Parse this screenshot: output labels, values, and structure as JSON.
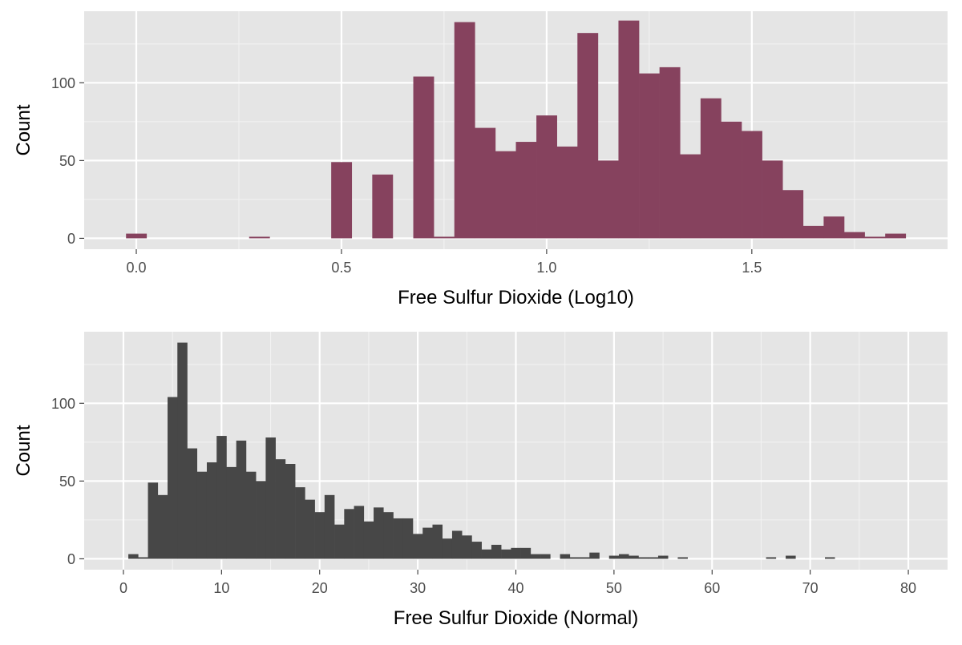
{
  "colors": {
    "panel_background": "#e5e5e5",
    "grid_major": "#ffffff",
    "grid_minor": "#f2f2f2",
    "tick_mark": "#333333",
    "tick_label": "#4d4d4d",
    "axis_title": "#000000",
    "top_fill": "#86425e",
    "bottom_fill": "#474747"
  },
  "chart_data": [
    {
      "type": "bar",
      "subtype": "histogram",
      "title": "",
      "xlabel": "Free Sulfur Dioxide (Log10)",
      "ylabel": "Count",
      "xlim": [
        -0.127,
        1.977
      ],
      "ylim": [
        -7,
        146
      ],
      "x_ticks": [
        {
          "value": 0.0,
          "label": "0.0"
        },
        {
          "value": 0.5,
          "label": "0.5"
        },
        {
          "value": 1.0,
          "label": "1.0"
        },
        {
          "value": 1.5,
          "label": "1.5"
        }
      ],
      "x_minor_ticks": [
        0.25,
        0.75,
        1.25,
        1.75
      ],
      "y_ticks": [
        {
          "value": 0,
          "label": "0"
        },
        {
          "value": 50,
          "label": "50"
        },
        {
          "value": 100,
          "label": "100"
        }
      ],
      "y_minor_ticks": [
        25,
        75,
        125
      ],
      "bin_width": 0.05,
      "bin_start": -0.025,
      "counts": [
        3,
        0,
        0,
        0,
        0,
        0,
        1,
        0,
        0,
        0,
        49,
        0,
        41,
        0,
        104,
        1,
        139,
        71,
        56,
        62,
        79,
        59,
        132,
        50,
        140,
        106,
        110,
        54,
        90,
        75,
        69,
        50,
        31,
        8,
        14,
        4,
        1,
        3
      ],
      "fill": "#86425e",
      "grid": true
    },
    {
      "type": "bar",
      "subtype": "histogram",
      "title": "",
      "xlabel": "Free Sulfur Dioxide (Normal)",
      "ylabel": "Count",
      "xlim": [
        -4,
        84
      ],
      "ylim": [
        -7,
        146
      ],
      "x_ticks": [
        {
          "value": 0,
          "label": "0"
        },
        {
          "value": 10,
          "label": "10"
        },
        {
          "value": 20,
          "label": "20"
        },
        {
          "value": 30,
          "label": "30"
        },
        {
          "value": 40,
          "label": "40"
        },
        {
          "value": 50,
          "label": "50"
        },
        {
          "value": 60,
          "label": "60"
        },
        {
          "value": 70,
          "label": "70"
        },
        {
          "value": 80,
          "label": "80"
        }
      ],
      "x_minor_ticks": [
        5,
        15,
        25,
        35,
        45,
        55,
        65,
        75
      ],
      "y_ticks": [
        {
          "value": 0,
          "label": "0"
        },
        {
          "value": 50,
          "label": "50"
        },
        {
          "value": 100,
          "label": "100"
        }
      ],
      "y_minor_ticks": [
        25,
        75,
        125
      ],
      "bin_width": 1,
      "bin_start": 0.5,
      "counts": [
        3,
        1,
        49,
        41,
        104,
        139,
        71,
        56,
        62,
        79,
        59,
        76,
        56,
        50,
        78,
        64,
        61,
        46,
        38,
        30,
        41,
        22,
        32,
        34,
        24,
        33,
        30,
        26,
        26,
        16,
        20,
        22,
        13,
        18,
        15,
        11,
        6,
        9,
        6,
        7,
        7,
        3,
        3,
        0,
        3,
        1,
        1,
        4,
        0,
        2,
        3,
        2,
        1,
        1,
        2,
        0,
        1,
        0,
        0,
        0,
        0,
        0,
        0,
        0,
        0,
        1,
        0,
        2,
        0,
        0,
        0,
        1
      ],
      "fill": "#474747",
      "grid": true
    }
  ]
}
